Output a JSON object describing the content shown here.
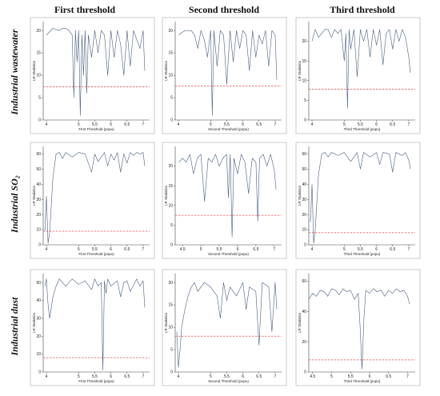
{
  "figure": {
    "column_titles": [
      "First threshold",
      "Second threshold",
      "Third threshold"
    ],
    "row_titles": [
      "Industrial wastewater",
      "Industrial SO₂",
      "Industrial dust"
    ]
  },
  "style": {
    "line_color": "#4a5f7e",
    "threshold_color": "#e05050",
    "panel_bg": "#ffffff",
    "panel_border": "#bfbfbf",
    "axis_color": "#444444"
  },
  "chart_data": [
    {
      "type": "line",
      "row": 0,
      "col": 0,
      "xlabel": "First Threshold (popu)",
      "ylabel": "LR Statistics",
      "xlim": [
        3.9,
        7.2
      ],
      "ylim": [
        0,
        22
      ],
      "xticks": [
        4,
        5,
        5.5,
        6,
        6.5,
        7
      ],
      "xtick_labels": [
        "4",
        "5",
        "5.5",
        "6",
        "6.5",
        "7"
      ],
      "yticks": [
        0,
        5,
        10,
        15,
        20
      ],
      "critical_value": 7.4,
      "x": [
        4.0,
        4.2,
        4.4,
        4.5,
        4.6,
        4.7,
        4.8,
        4.85,
        4.9,
        4.95,
        5.0,
        5.05,
        5.1,
        5.15,
        5.2,
        5.25,
        5.3,
        5.4,
        5.5,
        5.6,
        5.7,
        5.8,
        5.9,
        6.0,
        6.1,
        6.2,
        6.3,
        6.4,
        6.5,
        6.6,
        6.7,
        6.8,
        6.9,
        7.0,
        7.05
      ],
      "y": [
        19,
        20.5,
        20,
        20.5,
        20.5,
        20,
        19,
        5,
        20,
        13,
        20,
        1,
        19,
        10,
        20,
        6,
        19,
        14,
        20,
        15,
        20,
        19,
        10,
        20,
        14,
        20,
        17,
        10,
        20,
        12,
        20,
        18,
        16,
        20,
        11
      ]
    },
    {
      "type": "line",
      "row": 0,
      "col": 1,
      "xlabel": "Second Threshold (popu)",
      "ylabel": "LR Statistics",
      "xlim": [
        3.9,
        7.2
      ],
      "ylim": [
        0,
        22
      ],
      "xticks": [
        4,
        5,
        5.5,
        6,
        6.5,
        7
      ],
      "xtick_labels": [
        "4",
        "5",
        "5.5",
        "6",
        "6.5",
        "7"
      ],
      "yticks": [
        0,
        5,
        10,
        15,
        20
      ],
      "critical_value": 7.6,
      "x": [
        4.0,
        4.2,
        4.4,
        4.5,
        4.6,
        4.7,
        4.8,
        4.9,
        5.0,
        5.05,
        5.1,
        5.2,
        5.3,
        5.4,
        5.5,
        5.6,
        5.7,
        5.8,
        5.9,
        6.0,
        6.1,
        6.2,
        6.3,
        6.4,
        6.5,
        6.6,
        6.7,
        6.8,
        6.9,
        7.0,
        7.05
      ],
      "y": [
        19,
        20,
        20,
        19,
        16,
        20,
        18,
        14,
        20,
        1,
        20,
        12,
        20,
        19,
        8,
        20,
        13,
        20,
        16,
        20,
        19,
        11,
        20,
        14,
        19,
        17,
        20,
        12,
        20,
        19,
        9
      ]
    },
    {
      "type": "line",
      "row": 0,
      "col": 2,
      "xlabel": "Third Threshold (popu)",
      "ylabel": "LR Statistics",
      "xlim": [
        3.9,
        7.2
      ],
      "ylim": [
        0,
        25
      ],
      "xticks": [
        4,
        5,
        5.5,
        6,
        6.5,
        7
      ],
      "xtick_labels": [
        "4",
        "5",
        "5.5",
        "6",
        "6.5",
        "7"
      ],
      "yticks": [
        0,
        5,
        10,
        15,
        20
      ],
      "critical_value": 7.8,
      "x": [
        4.0,
        4.1,
        4.2,
        4.4,
        4.5,
        4.6,
        4.7,
        4.8,
        4.9,
        5.0,
        5.05,
        5.1,
        5.15,
        5.2,
        5.3,
        5.4,
        5.5,
        5.6,
        5.7,
        5.8,
        5.9,
        6.0,
        6.1,
        6.2,
        6.3,
        6.4,
        6.5,
        6.6,
        6.7,
        6.8,
        6.9,
        7.0,
        7.05
      ],
      "y": [
        20,
        23,
        21,
        23,
        23,
        21,
        23,
        22,
        23,
        15,
        22,
        3,
        23,
        18,
        23,
        11,
        23,
        20,
        23,
        16,
        23,
        19,
        23,
        14,
        22,
        23,
        18,
        23,
        20,
        23,
        21,
        16,
        12
      ]
    },
    {
      "type": "line",
      "row": 1,
      "col": 0,
      "xlabel": "First Threshold (popu)",
      "ylabel": "LR Statistics",
      "xlim": [
        3.9,
        7.2
      ],
      "ylim": [
        0,
        65
      ],
      "xticks": [
        4,
        5,
        5.5,
        6,
        6.5,
        7
      ],
      "xtick_labels": [
        "4",
        "5",
        "5.5",
        "6",
        "6.5",
        "7"
      ],
      "yticks": [
        0,
        10,
        20,
        30,
        40,
        50,
        60
      ],
      "critical_value": 9,
      "x": [
        3.95,
        4.0,
        4.05,
        4.1,
        4.2,
        4.3,
        4.4,
        4.5,
        4.6,
        4.8,
        5.0,
        5.2,
        5.4,
        5.5,
        5.6,
        5.8,
        5.9,
        6.0,
        6.1,
        6.2,
        6.3,
        6.4,
        6.5,
        6.6,
        6.7,
        6.8,
        6.9,
        7.0,
        7.05
      ],
      "y": [
        9,
        32,
        1,
        8,
        44,
        60,
        61,
        57,
        61,
        58,
        61,
        60,
        48,
        60,
        55,
        61,
        52,
        60,
        56,
        61,
        48,
        60,
        54,
        61,
        59,
        61,
        60,
        61,
        52
      ]
    },
    {
      "type": "line",
      "row": 1,
      "col": 1,
      "xlabel": "Second Threshold (popu)",
      "ylabel": "LR Statistics",
      "xlim": [
        4.3,
        7.2
      ],
      "ylim": [
        0,
        25
      ],
      "xticks": [
        4.5,
        5,
        5.5,
        6,
        6.5,
        7
      ],
      "xtick_labels": [
        "4.5",
        "5",
        "5.5",
        "6",
        "6.5",
        "7"
      ],
      "yticks": [
        0,
        5,
        10,
        15,
        20
      ],
      "critical_value": 7.5,
      "x": [
        4.4,
        4.5,
        4.6,
        4.7,
        4.8,
        4.9,
        5.0,
        5.1,
        5.2,
        5.3,
        5.4,
        5.5,
        5.6,
        5.7,
        5.75,
        5.8,
        5.85,
        5.9,
        6.0,
        6.1,
        6.2,
        6.3,
        6.4,
        6.5,
        6.55,
        6.6,
        6.7,
        6.8,
        6.9,
        7.0,
        7.05
      ],
      "y": [
        21,
        22,
        21,
        23,
        18,
        22,
        23,
        11,
        22,
        21,
        23,
        20,
        22,
        23,
        12,
        23,
        2,
        22,
        18,
        23,
        21,
        13,
        22,
        21,
        6,
        22,
        23,
        20,
        23,
        19,
        14
      ]
    },
    {
      "type": "line",
      "row": 1,
      "col": 2,
      "xlabel": "Third Threshold (popu)",
      "ylabel": "LR Statistics",
      "xlim": [
        3.9,
        7.2
      ],
      "ylim": [
        0,
        65
      ],
      "xticks": [
        4,
        5,
        5.5,
        6,
        6.5,
        7
      ],
      "xtick_labels": [
        "4",
        "5",
        "5.5",
        "6",
        "6.5",
        "7"
      ],
      "yticks": [
        0,
        10,
        20,
        30,
        40,
        50,
        60
      ],
      "critical_value": 8,
      "x": [
        3.95,
        4.0,
        4.05,
        4.1,
        4.2,
        4.3,
        4.4,
        4.5,
        4.6,
        4.8,
        5.0,
        5.2,
        5.4,
        5.5,
        5.6,
        5.8,
        6.0,
        6.1,
        6.2,
        6.4,
        6.5,
        6.6,
        6.8,
        6.9,
        7.0,
        7.05
      ],
      "y": [
        15,
        40,
        1,
        10,
        46,
        60,
        61,
        58,
        61,
        59,
        61,
        55,
        61,
        50,
        61,
        58,
        61,
        53,
        61,
        60,
        48,
        61,
        59,
        61,
        56,
        50
      ]
    },
    {
      "type": "line",
      "row": 2,
      "col": 0,
      "xlabel": "First Threshold (popu)",
      "ylabel": "LR Statistics",
      "xlim": [
        3.9,
        7.2
      ],
      "ylim": [
        0,
        55
      ],
      "xticks": [
        4,
        5,
        5.5,
        6,
        6.5,
        7
      ],
      "xtick_labels": [
        "4",
        "5",
        "5.5",
        "6",
        "6.5",
        "7"
      ],
      "yticks": [
        0,
        10,
        20,
        30,
        40,
        50
      ],
      "critical_value": 8,
      "x": [
        3.95,
        4.0,
        4.05,
        4.1,
        4.2,
        4.3,
        4.4,
        4.5,
        4.6,
        4.8,
        5.0,
        5.2,
        5.4,
        5.5,
        5.6,
        5.7,
        5.75,
        5.8,
        5.85,
        5.9,
        6.0,
        6.2,
        6.3,
        6.4,
        6.5,
        6.6,
        6.8,
        6.9,
        7.0,
        7.05
      ],
      "y": [
        48,
        52,
        38,
        30,
        42,
        48,
        52,
        50,
        48,
        52,
        49,
        51,
        46,
        52,
        48,
        50,
        1,
        51,
        44,
        52,
        48,
        51,
        42,
        50,
        51,
        45,
        52,
        48,
        51,
        36
      ]
    },
    {
      "type": "line",
      "row": 2,
      "col": 1,
      "xlabel": "Second Threshold (popu)",
      "ylabel": "LR Statistics",
      "xlim": [
        3.9,
        7.2
      ],
      "ylim": [
        0,
        22
      ],
      "xticks": [
        4,
        5,
        5.5,
        6,
        6.5,
        7
      ],
      "xtick_labels": [
        "4",
        "5",
        "5.5",
        "6",
        "6.5",
        "7"
      ],
      "yticks": [
        0,
        5,
        10,
        15,
        20
      ],
      "critical_value": 8,
      "x": [
        3.95,
        4.0,
        4.05,
        4.1,
        4.2,
        4.3,
        4.4,
        4.5,
        4.6,
        4.8,
        5.0,
        5.2,
        5.3,
        5.4,
        5.5,
        5.6,
        5.8,
        6.0,
        6.1,
        6.2,
        6.4,
        6.5,
        6.6,
        6.8,
        6.9,
        7.0,
        7.05
      ],
      "y": [
        9,
        1,
        5,
        10,
        14,
        17,
        19,
        20,
        18,
        20,
        19,
        17,
        12,
        20,
        16,
        19,
        17,
        20,
        14,
        19,
        18,
        6,
        20,
        19,
        9,
        20,
        14
      ]
    },
    {
      "type": "line",
      "row": 2,
      "col": 2,
      "xlabel": "Third Threshold (popu)",
      "ylabel": "LR Statistics",
      "xlim": [
        4.4,
        7.2
      ],
      "ylim": [
        0,
        65
      ],
      "xticks": [
        4.5,
        5,
        5.5,
        6,
        6.5,
        7
      ],
      "xtick_labels": [
        "4.5",
        "5",
        "5.5",
        "6",
        "6.5",
        "7"
      ],
      "yticks": [
        0,
        20,
        40,
        60
      ],
      "critical_value": 8,
      "x": [
        4.4,
        4.5,
        4.6,
        4.7,
        4.8,
        4.9,
        5.0,
        5.1,
        5.2,
        5.3,
        5.4,
        5.5,
        5.6,
        5.7,
        5.75,
        5.8,
        5.85,
        5.9,
        6.0,
        6.1,
        6.2,
        6.3,
        6.4,
        6.5,
        6.6,
        6.7,
        6.8,
        6.9,
        7.0,
        7.05
      ],
      "y": [
        48,
        52,
        50,
        54,
        53,
        50,
        55,
        54,
        51,
        55,
        53,
        54,
        48,
        52,
        30,
        2,
        35,
        54,
        52,
        55,
        53,
        54,
        50,
        54,
        52,
        55,
        53,
        54,
        50,
        45
      ]
    }
  ]
}
